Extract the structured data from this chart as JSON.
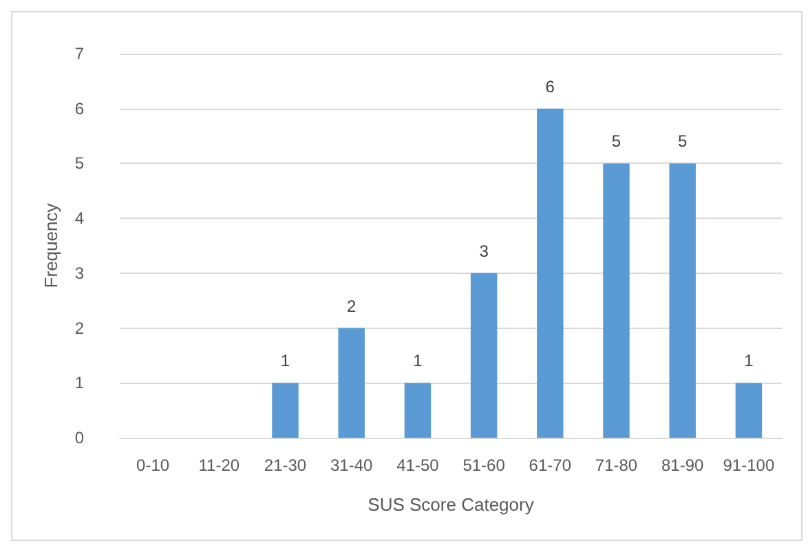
{
  "chart_data": {
    "type": "bar",
    "xlabel": "SUS Score Category",
    "ylabel": "Frequency",
    "categories": [
      "0-10",
      "11-20",
      "21-30",
      "31-40",
      "41-50",
      "51-60",
      "61-70",
      "71-80",
      "81-90",
      "91-100"
    ],
    "values": [
      0,
      0,
      1,
      2,
      1,
      3,
      6,
      5,
      5,
      1
    ],
    "value_labels": [
      null,
      null,
      "1",
      "2",
      "1",
      "3",
      "6",
      "5",
      "5",
      "1"
    ],
    "color": "#5b9bd5",
    "ylim": [
      0,
      7
    ],
    "yticks": [
      0,
      1,
      2,
      3,
      4,
      5,
      6,
      7
    ],
    "grid": "y"
  }
}
